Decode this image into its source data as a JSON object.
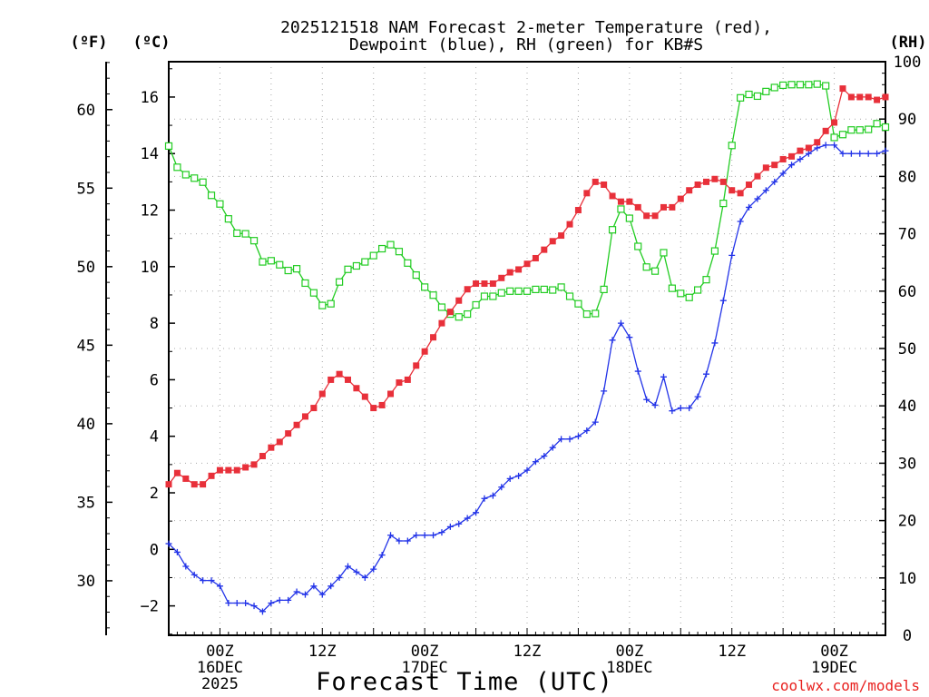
{
  "title_line1": "2025121518 NAM Forecast 2-meter Temperature (red),",
  "title_line2": "Dewpoint (blue), RH (green) for KB#S",
  "credit": "coolwx.com/models",
  "colors": {
    "temperature": "#e8303a",
    "dewpoint": "#2233e8",
    "rh": "#22cc22",
    "grid": "#a8a8a8",
    "credit": "#e8211f"
  },
  "chart_data": {
    "type": "line",
    "xlabel": "Forecast Time (UTC)",
    "x_start": "2025-12-15 18Z",
    "x_step_hours": 1,
    "x_ticks": [
      {
        "hour": 6,
        "lines": [
          "00Z",
          "16DEC",
          "2025"
        ]
      },
      {
        "hour": 18,
        "lines": [
          "12Z"
        ]
      },
      {
        "hour": 30,
        "lines": [
          "00Z",
          "17DEC"
        ]
      },
      {
        "hour": 42,
        "lines": [
          "12Z"
        ]
      },
      {
        "hour": 54,
        "lines": [
          "00Z",
          "18DEC"
        ]
      },
      {
        "hour": 66,
        "lines": [
          "12Z"
        ]
      },
      {
        "hour": 78,
        "lines": [
          "00Z",
          "19DEC"
        ]
      }
    ],
    "xlim": [
      0,
      84
    ],
    "left_axis_c": {
      "label": "(ºC)",
      "ylim": [
        -3.04,
        17.25
      ],
      "ticks": [
        -2,
        0,
        2,
        4,
        6,
        8,
        10,
        12,
        14,
        16
      ]
    },
    "left_axis_f": {
      "label": "(ºF)",
      "ticks": [
        30,
        35,
        40,
        45,
        50,
        55,
        60
      ]
    },
    "right_axis_rh": {
      "label": "(RH)",
      "ylim": [
        0,
        100
      ],
      "ticks": [
        0,
        10,
        20,
        30,
        40,
        50,
        60,
        70,
        80,
        90,
        100
      ]
    },
    "grid": true,
    "series": [
      {
        "name": "Temperature",
        "unit": "C",
        "marker": "filled-square",
        "values": [
          2.3,
          2.7,
          2.5,
          2.3,
          2.3,
          2.6,
          2.8,
          2.8,
          2.8,
          2.9,
          3.0,
          3.3,
          3.6,
          3.8,
          4.1,
          4.4,
          4.7,
          5.0,
          5.5,
          6.0,
          6.2,
          6.0,
          5.7,
          5.4,
          5.0,
          5.1,
          5.5,
          5.9,
          6.0,
          6.5,
          7.0,
          7.5,
          8.0,
          8.4,
          8.8,
          9.2,
          9.4,
          9.4,
          9.4,
          9.6,
          9.8,
          9.9,
          10.1,
          10.3,
          10.6,
          10.9,
          11.1,
          11.5,
          12.0,
          12.6,
          13.0,
          12.9,
          12.5,
          12.3,
          12.3,
          12.1,
          11.8,
          11.8,
          12.1,
          12.1,
          12.4,
          12.7,
          12.9,
          13.0,
          13.1,
          13.0,
          12.7,
          12.6,
          12.9,
          13.2,
          13.5,
          13.6,
          13.8,
          13.9,
          14.1,
          14.2,
          14.4,
          14.8,
          15.1,
          16.3,
          16.0,
          16.0,
          16.0,
          15.9,
          16.0
        ]
      },
      {
        "name": "Dewpoint",
        "unit": "C",
        "marker": "plus",
        "values": [
          0.2,
          -0.1,
          -0.6,
          -0.9,
          -1.1,
          -1.1,
          -1.3,
          -1.9,
          -1.9,
          -1.9,
          -2.0,
          -2.2,
          -1.9,
          -1.8,
          -1.8,
          -1.5,
          -1.6,
          -1.3,
          -1.6,
          -1.3,
          -1.0,
          -0.6,
          -0.8,
          -1.0,
          -0.7,
          -0.2,
          0.5,
          0.3,
          0.3,
          0.5,
          0.5,
          0.5,
          0.6,
          0.8,
          0.9,
          1.1,
          1.3,
          1.8,
          1.9,
          2.2,
          2.5,
          2.6,
          2.8,
          3.1,
          3.3,
          3.6,
          3.9,
          3.9,
          4.0,
          4.2,
          4.5,
          5.6,
          7.4,
          8.0,
          7.5,
          6.3,
          5.3,
          5.1,
          6.1,
          4.9,
          5.0,
          5.0,
          5.4,
          6.2,
          7.3,
          8.8,
          10.4,
          11.6,
          12.1,
          12.4,
          12.7,
          13.0,
          13.3,
          13.6,
          13.8,
          14.0,
          14.2,
          14.3,
          14.3,
          14.0,
          14.0,
          14.0,
          14.0,
          14.0,
          14.1
        ]
      },
      {
        "name": "RH",
        "unit": "%",
        "marker": "open-square",
        "values": [
          85.3,
          81.6,
          80.3,
          79.7,
          79.0,
          76.7,
          75.2,
          72.6,
          70.1,
          70.0,
          68.8,
          65.1,
          65.3,
          64.6,
          63.6,
          63.9,
          61.4,
          59.7,
          57.5,
          57.8,
          61.6,
          63.8,
          64.4,
          65.1,
          66.2,
          67.4,
          68.1,
          66.9,
          64.9,
          62.8,
          60.7,
          59.3,
          57.2,
          56.0,
          55.5,
          56.0,
          57.6,
          59.1,
          59.1,
          59.7,
          60.0,
          60.0,
          60.0,
          60.3,
          60.3,
          60.2,
          60.7,
          59.1,
          57.8,
          56.0,
          56.1,
          60.3,
          70.7,
          74.3,
          72.7,
          67.8,
          64.2,
          63.5,
          66.7,
          60.5,
          59.6,
          58.9,
          60.2,
          62.0,
          67.0,
          75.3,
          85.4,
          93.7,
          94.3,
          94.0,
          94.8,
          95.5,
          95.9,
          96.0,
          96.0,
          96.0,
          96.1,
          95.8,
          86.8,
          87.3,
          88.1,
          88.1,
          88.2,
          89.2,
          88.6
        ]
      }
    ]
  }
}
